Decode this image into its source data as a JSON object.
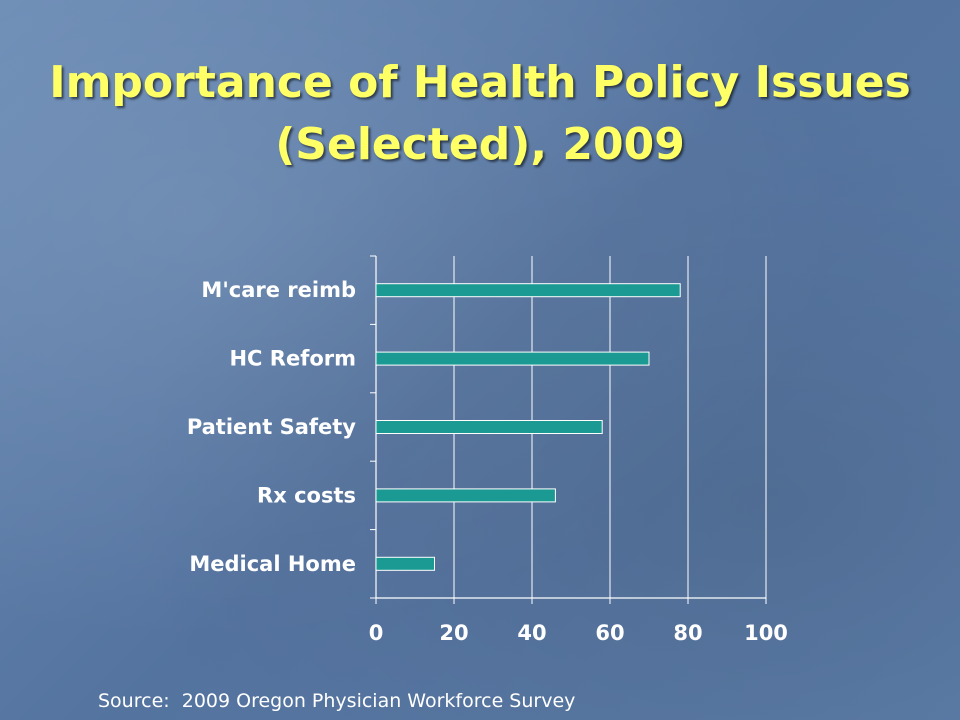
{
  "slide": {
    "title_line1": "Importance of Health Policy Issues",
    "title_line2": "(Selected), 2009",
    "source": "Source:  2009 Oregon Physician Workforce Survey",
    "colors": {
      "title": "#ffff66",
      "bar_fill": "#1a9a92",
      "bar_stroke": "#ffffff",
      "text": "#ffffff",
      "grid": "#ffffff"
    }
  },
  "chart_data": {
    "type": "bar",
    "orientation": "horizontal",
    "categories": [
      "M'care reimb",
      "HC Reform",
      "Patient Safety",
      "Rx costs",
      "Medical Home"
    ],
    "values": [
      78,
      70,
      58,
      46,
      15
    ],
    "xlim": [
      0,
      100
    ],
    "xticks": [
      "0",
      "20",
      "40",
      "60",
      "80",
      "100"
    ],
    "grid": true,
    "title": "",
    "xlabel": "",
    "ylabel": ""
  }
}
